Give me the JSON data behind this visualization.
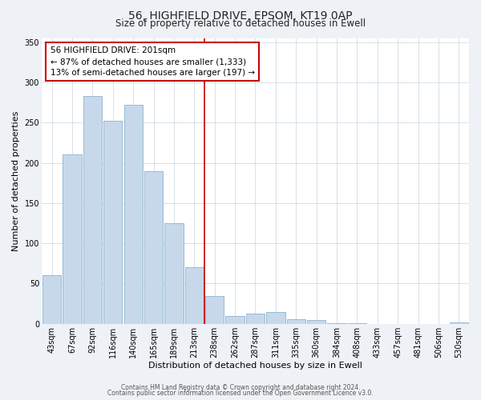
{
  "title": "56, HIGHFIELD DRIVE, EPSOM, KT19 0AP",
  "subtitle": "Size of property relative to detached houses in Ewell",
  "xlabel": "Distribution of detached houses by size in Ewell",
  "ylabel": "Number of detached properties",
  "bar_labels": [
    "43sqm",
    "67sqm",
    "92sqm",
    "116sqm",
    "140sqm",
    "165sqm",
    "189sqm",
    "213sqm",
    "238sqm",
    "262sqm",
    "287sqm",
    "311sqm",
    "335sqm",
    "360sqm",
    "384sqm",
    "408sqm",
    "433sqm",
    "457sqm",
    "481sqm",
    "506sqm",
    "530sqm"
  ],
  "bar_values": [
    60,
    210,
    283,
    252,
    272,
    190,
    125,
    70,
    35,
    10,
    13,
    15,
    6,
    5,
    1,
    1,
    0,
    0,
    0,
    0,
    2
  ],
  "bar_color": "#c8d8eb",
  "bar_edge_color": "#8ab4cf",
  "vline_x": 7.5,
  "vline_color": "#cc0000",
  "annotation_text": "56 HIGHFIELD DRIVE: 201sqm\n← 87% of detached houses are smaller (1,333)\n13% of semi-detached houses are larger (197) →",
  "annotation_box_color": "#ffffff",
  "annotation_box_edge": "#cc0000",
  "ylim": [
    0,
    355
  ],
  "yticks": [
    0,
    50,
    100,
    150,
    200,
    250,
    300,
    350
  ],
  "footer1": "Contains HM Land Registry data © Crown copyright and database right 2024.",
  "footer2": "Contains public sector information licensed under the Open Government Licence v3.0.",
  "bg_color": "#eef2f7",
  "plot_bg_color": "#ffffff",
  "grid_color": "#c8d4e0",
  "title_fontsize": 10,
  "subtitle_fontsize": 8.5,
  "axis_label_fontsize": 8,
  "tick_fontsize": 7,
  "footer_fontsize": 5.5,
  "annotation_fontsize": 7.5
}
